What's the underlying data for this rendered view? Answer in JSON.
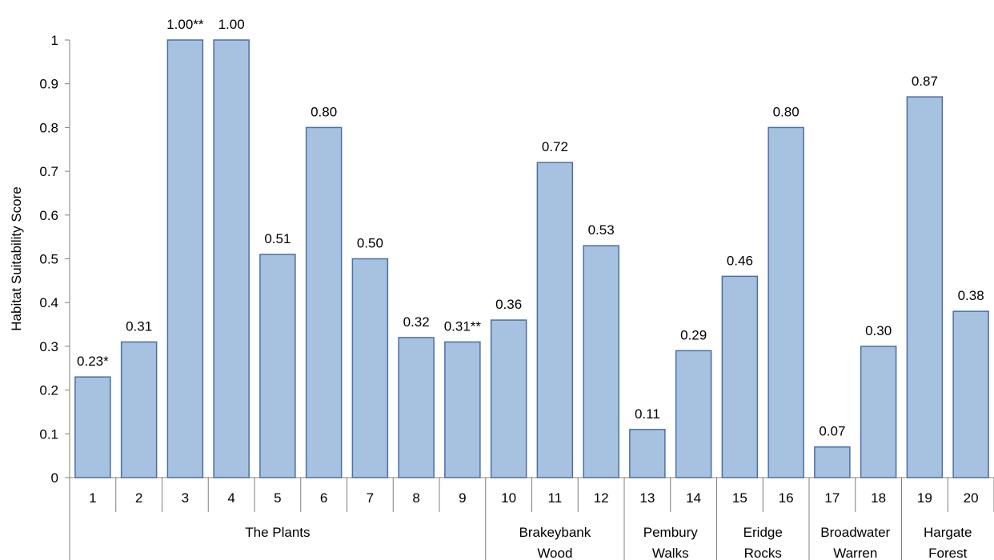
{
  "chart_data": {
    "type": "bar",
    "ylabel": "Habitat Suitability Score",
    "xlabel": "",
    "ylim": [
      0,
      1
    ],
    "yticks": [
      "0",
      "0.1",
      "0.2",
      "0.3",
      "0.4",
      "0.5",
      "0.6",
      "0.7",
      "0.8",
      "0.9",
      "1"
    ],
    "categories": [
      "1",
      "2",
      "3",
      "4",
      "5",
      "6",
      "7",
      "8",
      "9",
      "10",
      "11",
      "12",
      "13",
      "14",
      "15",
      "16",
      "17",
      "18",
      "19",
      "20"
    ],
    "values": [
      0.23,
      0.31,
      1.0,
      1.0,
      0.51,
      0.8,
      0.5,
      0.32,
      0.31,
      0.36,
      0.72,
      0.53,
      0.11,
      0.29,
      0.46,
      0.8,
      0.07,
      0.3,
      0.87,
      0.38
    ],
    "data_labels": [
      "0.23*",
      "0.31",
      "1.00**",
      "1.00",
      "0.51",
      "0.80",
      "0.50",
      "0.32",
      "0.31**",
      "0.36",
      "0.72",
      "0.53",
      "0.11",
      "0.29",
      "0.46",
      "0.80",
      "0.07",
      "0.30",
      "0.87",
      "0.38"
    ],
    "groups": [
      {
        "lines": [
          "The Plants"
        ],
        "start": 0,
        "end": 8
      },
      {
        "lines": [
          "Brakeybank",
          "Wood"
        ],
        "start": 9,
        "end": 11
      },
      {
        "lines": [
          "Pembury",
          "Walks"
        ],
        "start": 12,
        "end": 13
      },
      {
        "lines": [
          "Eridge",
          "Rocks"
        ],
        "start": 14,
        "end": 15
      },
      {
        "lines": [
          "Broadwater",
          "Warren"
        ],
        "start": 16,
        "end": 17
      },
      {
        "lines": [
          "Hargate",
          "Forest"
        ],
        "start": 18,
        "end": 19
      }
    ],
    "grid": false,
    "legend": "none",
    "colors": {
      "bar_fill": "#a7c1e0",
      "bar_stroke": "#4a6fa5",
      "axis": "#7f7f7f"
    }
  }
}
